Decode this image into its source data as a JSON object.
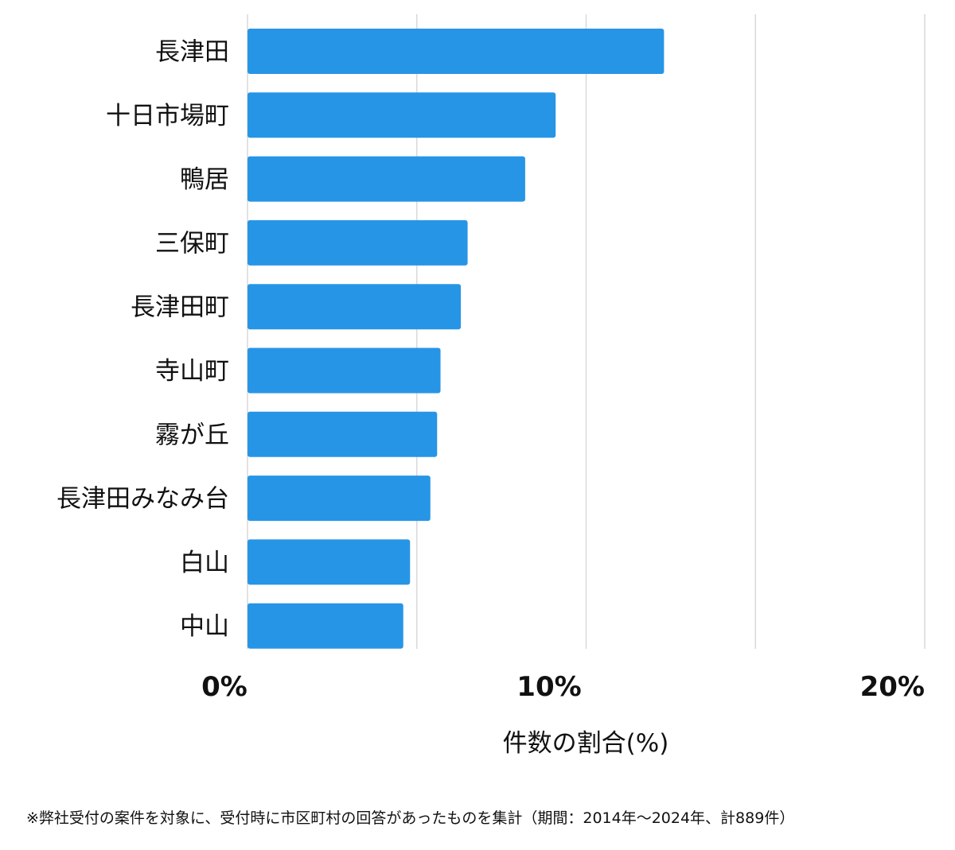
{
  "chart_data": {
    "type": "bar",
    "orientation": "horizontal",
    "categories": [
      "長津田",
      "十日市場町",
      "鴨居",
      "三保町",
      "長津田町",
      "寺山町",
      "霧が丘",
      "長津田みなみ台",
      "白山",
      "中山"
    ],
    "values": [
      12.3,
      9.1,
      8.2,
      6.5,
      6.3,
      5.7,
      5.6,
      5.4,
      4.8,
      4.6
    ],
    "xlim": [
      0,
      20
    ],
    "x_ticks": [
      "0%",
      "10%",
      "20%"
    ],
    "xlabel": "件数の割合(%)",
    "ylabel": "",
    "title": "",
    "grid": true,
    "bar_color": "#2795e6",
    "grid_color": "#d9d9d9"
  },
  "footnote": "※弊社受付の案件を対象に、受付時に市区町村の回答があったものを集計（期間：2014年～2024年、計889件）"
}
